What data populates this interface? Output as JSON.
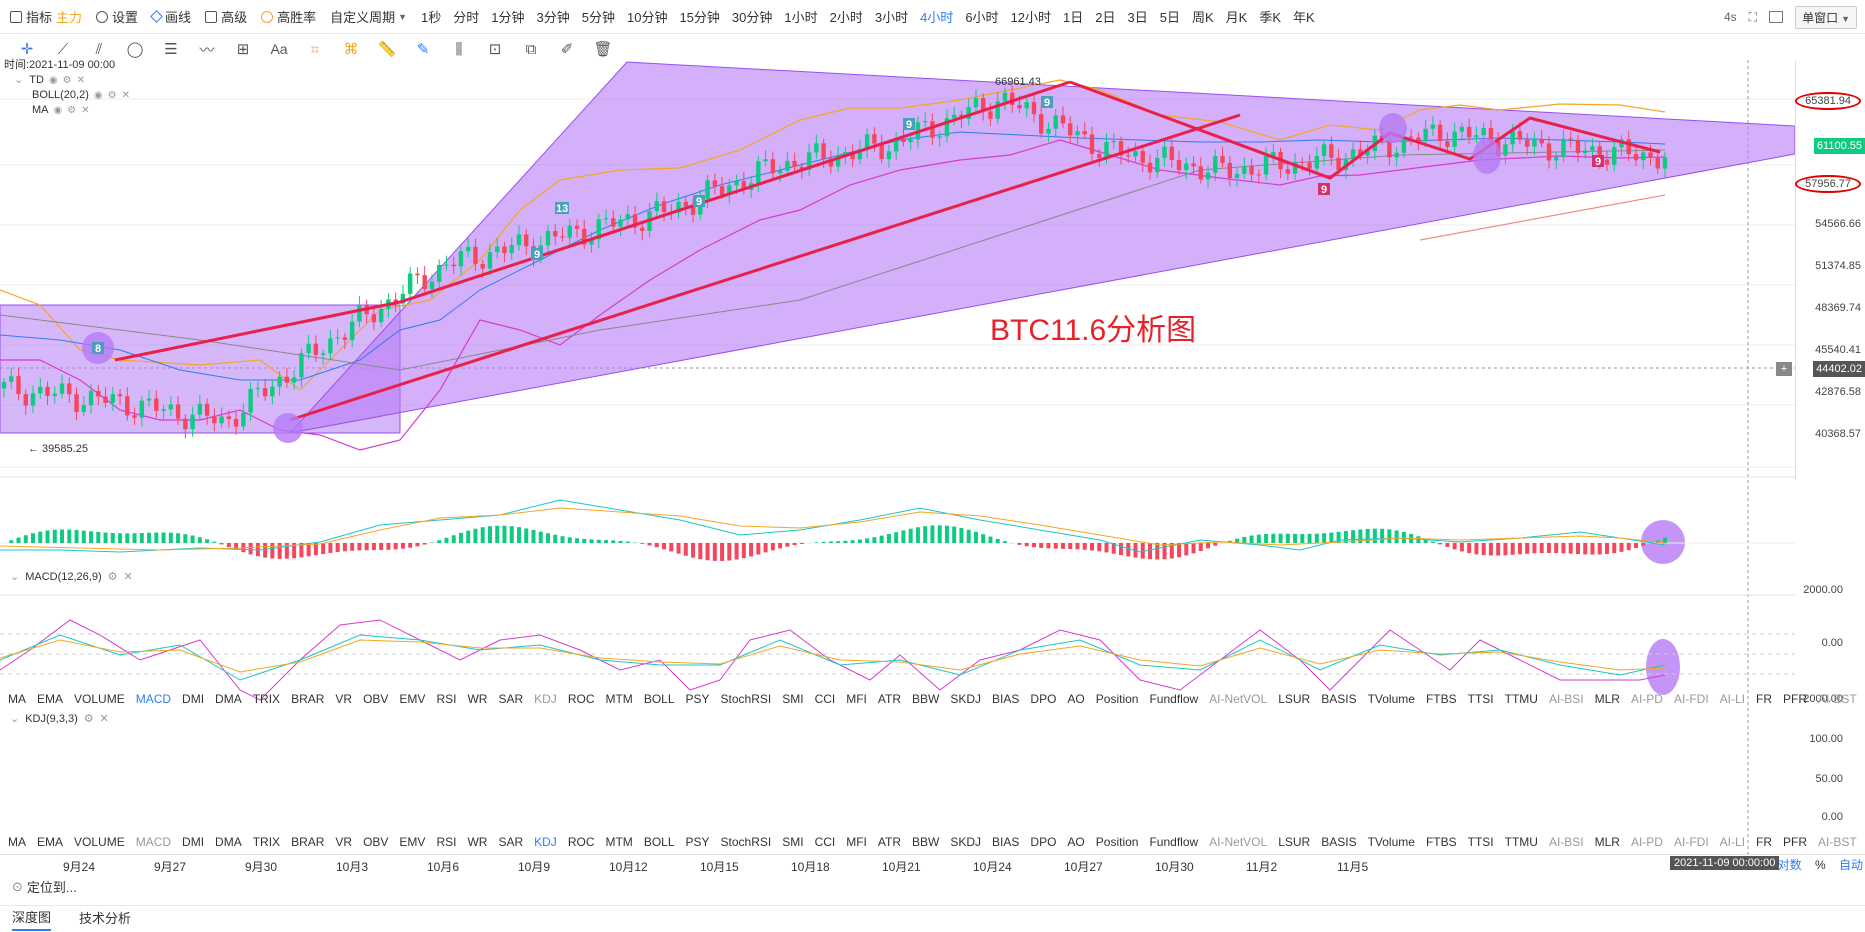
{
  "toolbar": {
    "indicator": "指标",
    "indicator_sub": "主力",
    "settings": "设置",
    "drawing": "画线",
    "advanced": "高级",
    "win_rate": "高胜率",
    "custom_period": "自定义周期",
    "periods": [
      "1秒",
      "分时",
      "1分钟",
      "3分钟",
      "5分钟",
      "10分钟",
      "15分钟",
      "30分钟",
      "1小时",
      "2小时",
      "3小时",
      "4小时",
      "6小时",
      "12小时",
      "1日",
      "2日",
      "3日",
      "5日",
      "周K",
      "月K",
      "季K",
      "年K"
    ],
    "active_period": "4小时",
    "refresh": "4s",
    "window_mode": "单窗口"
  },
  "drawing_tools": [
    "crosshair-icon",
    "line-icon",
    "parallel-icon",
    "circle-icon",
    "horizontal-lines-icon",
    "wave-icon",
    "measure-icon",
    "text-icon",
    "fib-icon",
    "pattern-icon",
    "ruler-icon",
    "brush-icon",
    "bars-icon",
    "lock-icon",
    "copy-icon",
    "note-icon",
    "trash-icon"
  ],
  "text_tool_label": "Aa",
  "legend": {
    "time": "时间:2021-11-09 00:00",
    "indicators": [
      "TD",
      "BOLL(20,2)",
      "MA"
    ]
  },
  "chart": {
    "annotation": "BTC11.6分析图",
    "high_label": "66961.43",
    "low_label": "← 39585.25",
    "price_axis": [
      "65381.94",
      "61100.55",
      "57956.77",
      "54566.66",
      "51374.85",
      "48369.74",
      "45540.41",
      "44402.02",
      "42876.58",
      "40368.57"
    ],
    "current_price": "61100.55",
    "cursor_price": "44402.02",
    "colors": {
      "up": "#0ecb81",
      "down": "#f6465d",
      "zone": "#b57bf5",
      "arrow": "#e8204a",
      "circle": "#e00000"
    }
  },
  "chart_data": {
    "type": "line",
    "title": "BTC11.6分析图",
    "x": [
      "9月24",
      "9月27",
      "9月30",
      "10月3",
      "10月6",
      "10月9",
      "10月12",
      "10月15",
      "10月18",
      "10月21",
      "10月24",
      "10月27",
      "10月30",
      "11月2",
      "11月5",
      "2021-11-09 00:00"
    ],
    "series": [
      {
        "values": [
          43500,
          42500,
          41000,
          47500,
          53000,
          55000,
          57000,
          60500,
          62000,
          65500,
          61500,
          60000,
          61000,
          63000,
          61800,
          61100
        ]
      }
    ],
    "ylim": [
      39585.25,
      66961.43
    ]
  },
  "macd": {
    "label": "MACD(12,26,9)",
    "axis": [
      "2000.00",
      "0.00",
      "-2000.00"
    ]
  },
  "kdj": {
    "label": "KDJ(9,3,3)",
    "axis": [
      "100.00",
      "50.00",
      "0.00"
    ]
  },
  "indicator_tabs": [
    "MA",
    "EMA",
    "VOLUME",
    "MACD",
    "DMI",
    "DMA",
    "TRIX",
    "BRAR",
    "VR",
    "OBV",
    "EMV",
    "RSI",
    "WR",
    "SAR",
    "KDJ",
    "ROC",
    "MTM",
    "BOLL",
    "PSY",
    "StochRSI",
    "SMI",
    "CCI",
    "MFI",
    "ATR",
    "BBW",
    "SKDJ",
    "BIAS",
    "DPO",
    "AO",
    "Position",
    "Fundflow",
    "AI-NetVOL",
    "LSUR",
    "BASIS",
    "TVolume",
    "FTBS",
    "TTSI",
    "TTMU",
    "AI-BSI",
    "MLR",
    "AI-PD",
    "AI-FDI",
    "AI-LI",
    "FR",
    "PFR",
    "AI-BST"
  ],
  "date_axis": [
    "9月24",
    "9月27",
    "9月30",
    "10月3",
    "10月6",
    "10月9",
    "10月12",
    "10月15",
    "10月18",
    "10月21",
    "10月24",
    "10月27",
    "10月30",
    "11月2",
    "11月5"
  ],
  "cursor_date": "2021-11-09 00:00:00",
  "axis_modes": [
    "对数",
    "%",
    "自动"
  ],
  "locate": "定位到...",
  "bottom_tabs": [
    "深度图",
    "技术分析"
  ]
}
